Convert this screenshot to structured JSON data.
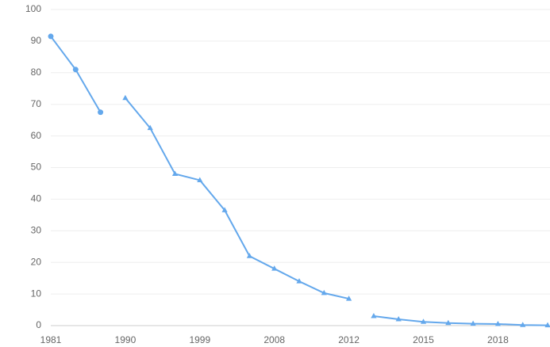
{
  "chart_data": {
    "type": "line",
    "categories": [
      "1981",
      null,
      null,
      "1990",
      null,
      null,
      "1999",
      null,
      null,
      "2008",
      null,
      null,
      "2012",
      null,
      null,
      "2015",
      null,
      null,
      "2018",
      null,
      null
    ],
    "series": [
      {
        "color": "#64a8ec",
        "marker": "circle",
        "values": [
          91.5,
          81,
          67.5,
          null,
          null,
          null,
          null,
          null,
          null,
          null,
          null,
          null,
          null,
          null,
          null,
          null,
          null,
          null,
          null,
          null,
          null
        ]
      },
      {
        "color": "#64a8ec",
        "marker": "triangle",
        "values": [
          null,
          null,
          null,
          72,
          62.5,
          48,
          46,
          36.5,
          22,
          18,
          14,
          10.3,
          8.5,
          null,
          null,
          null,
          null,
          null,
          null,
          null,
          null
        ]
      },
      {
        "color": "#64a8ec",
        "marker": "triangle",
        "values": [
          null,
          null,
          null,
          null,
          null,
          null,
          null,
          null,
          null,
          null,
          null,
          null,
          null,
          3,
          2,
          1.2,
          0.8,
          0.6,
          0.5,
          0.2,
          0.1
        ]
      }
    ],
    "ylim": [
      0,
      100
    ],
    "yticks": [
      0,
      10,
      20,
      30,
      40,
      50,
      60,
      70,
      80,
      90,
      100
    ],
    "grid": true
  }
}
